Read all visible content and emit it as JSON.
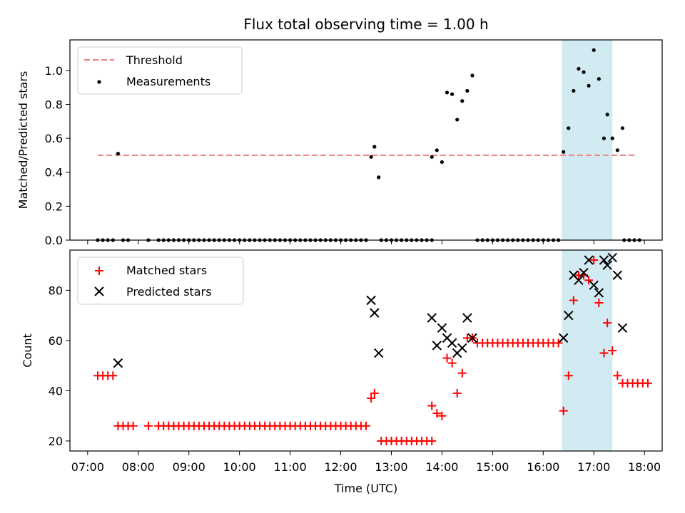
{
  "title": "Flux total observing time = 1.00 h",
  "xlabel": "Time (UTC)",
  "chart_data": [
    {
      "type": "scatter",
      "ylabel": "Matched/Predicted stars",
      "xlim": [
        "07:00",
        "18:00"
      ],
      "ylim": [
        0,
        1.18
      ],
      "yticks": [
        "0.0",
        "0.2",
        "0.4",
        "0.6",
        "0.8",
        "1.0"
      ],
      "threshold": {
        "name": "Threshold",
        "value": 0.5,
        "x_range": [
          "07:12",
          "17:50"
        ],
        "color": "#f08080"
      },
      "highlight_span": [
        "16:22",
        "17:22"
      ],
      "legend_location": "upper left",
      "series": [
        {
          "name": "Measurements",
          "color": "#000000",
          "points": [
            [
              "07:12",
              0.0
            ],
            [
              "07:18",
              0.0
            ],
            [
              "07:24",
              0.0
            ],
            [
              "07:30",
              0.0
            ],
            [
              "07:36",
              0.51
            ],
            [
              "07:42",
              0.0
            ],
            [
              "07:48",
              0.0
            ],
            [
              "08:12",
              0.0
            ],
            [
              "08:24",
              0.0
            ],
            [
              "08:30",
              0.0
            ],
            [
              "08:36",
              0.0
            ],
            [
              "08:42",
              0.0
            ],
            [
              "08:48",
              0.0
            ],
            [
              "08:54",
              0.0
            ],
            [
              "09:00",
              0.0
            ],
            [
              "09:06",
              0.0
            ],
            [
              "09:12",
              0.0
            ],
            [
              "09:18",
              0.0
            ],
            [
              "09:24",
              0.0
            ],
            [
              "09:30",
              0.0
            ],
            [
              "09:36",
              0.0
            ],
            [
              "09:42",
              0.0
            ],
            [
              "09:48",
              0.0
            ],
            [
              "09:54",
              0.0
            ],
            [
              "10:00",
              0.0
            ],
            [
              "10:06",
              0.0
            ],
            [
              "10:12",
              0.0
            ],
            [
              "10:18",
              0.0
            ],
            [
              "10:24",
              0.0
            ],
            [
              "10:30",
              0.0
            ],
            [
              "10:36",
              0.0
            ],
            [
              "10:42",
              0.0
            ],
            [
              "10:48",
              0.0
            ],
            [
              "10:54",
              0.0
            ],
            [
              "11:00",
              0.0
            ],
            [
              "11:06",
              0.0
            ],
            [
              "11:12",
              0.0
            ],
            [
              "11:18",
              0.0
            ],
            [
              "11:24",
              0.0
            ],
            [
              "11:30",
              0.0
            ],
            [
              "11:36",
              0.0
            ],
            [
              "11:42",
              0.0
            ],
            [
              "11:48",
              0.0
            ],
            [
              "11:54",
              0.0
            ],
            [
              "12:00",
              0.0
            ],
            [
              "12:06",
              0.0
            ],
            [
              "12:12",
              0.0
            ],
            [
              "12:18",
              0.0
            ],
            [
              "12:24",
              0.0
            ],
            [
              "12:30",
              0.0
            ],
            [
              "12:36",
              0.49
            ],
            [
              "12:40",
              0.55
            ],
            [
              "12:45",
              0.37
            ],
            [
              "12:48",
              0.0
            ],
            [
              "12:54",
              0.0
            ],
            [
              "13:00",
              0.0
            ],
            [
              "13:06",
              0.0
            ],
            [
              "13:12",
              0.0
            ],
            [
              "13:18",
              0.0
            ],
            [
              "13:24",
              0.0
            ],
            [
              "13:30",
              0.0
            ],
            [
              "13:36",
              0.0
            ],
            [
              "13:42",
              0.0
            ],
            [
              "13:48",
              0.0
            ],
            [
              "13:48",
              0.49
            ],
            [
              "13:54",
              0.53
            ],
            [
              "14:00",
              0.46
            ],
            [
              "14:06",
              0.87
            ],
            [
              "14:12",
              0.86
            ],
            [
              "14:18",
              0.71
            ],
            [
              "14:24",
              0.82
            ],
            [
              "14:30",
              0.88
            ],
            [
              "14:36",
              0.97
            ],
            [
              "14:42",
              0.0
            ],
            [
              "14:48",
              0.0
            ],
            [
              "14:54",
              0.0
            ],
            [
              "15:00",
              0.0
            ],
            [
              "15:06",
              0.0
            ],
            [
              "15:12",
              0.0
            ],
            [
              "15:18",
              0.0
            ],
            [
              "15:24",
              0.0
            ],
            [
              "15:30",
              0.0
            ],
            [
              "15:36",
              0.0
            ],
            [
              "15:42",
              0.0
            ],
            [
              "15:48",
              0.0
            ],
            [
              "15:54",
              0.0
            ],
            [
              "16:00",
              0.0
            ],
            [
              "16:06",
              0.0
            ],
            [
              "16:12",
              0.0
            ],
            [
              "16:18",
              0.0
            ],
            [
              "16:24",
              0.52
            ],
            [
              "16:30",
              0.66
            ],
            [
              "16:36",
              0.88
            ],
            [
              "16:42",
              1.01
            ],
            [
              "16:48",
              0.99
            ],
            [
              "16:54",
              0.91
            ],
            [
              "17:00",
              1.12
            ],
            [
              "17:06",
              0.95
            ],
            [
              "17:12",
              0.6
            ],
            [
              "17:16",
              0.74
            ],
            [
              "17:22",
              0.6
            ],
            [
              "17:28",
              0.53
            ],
            [
              "17:34",
              0.66
            ],
            [
              "17:36",
              0.0
            ],
            [
              "17:42",
              0.0
            ],
            [
              "17:48",
              0.0
            ],
            [
              "17:54",
              0.0
            ]
          ]
        }
      ]
    },
    {
      "type": "scatter",
      "ylabel": "Count",
      "xlim": [
        "07:00",
        "18:00"
      ],
      "ylim": [
        16,
        96
      ],
      "yticks": [
        "20",
        "40",
        "60",
        "80"
      ],
      "xticks": [
        "07:00",
        "08:00",
        "09:00",
        "10:00",
        "11:00",
        "12:00",
        "13:00",
        "14:00",
        "15:00",
        "16:00",
        "17:00",
        "18:00"
      ],
      "highlight_span": [
        "16:22",
        "17:22"
      ],
      "legend_location": "upper left",
      "series": [
        {
          "name": "Matched stars",
          "marker": "plus",
          "color": "#ff0000",
          "points": [
            [
              "07:12",
              46
            ],
            [
              "07:18",
              46
            ],
            [
              "07:24",
              46
            ],
            [
              "07:30",
              46
            ],
            [
              "07:36",
              26
            ],
            [
              "07:42",
              26
            ],
            [
              "07:48",
              26
            ],
            [
              "07:54",
              26
            ],
            [
              "08:12",
              26
            ],
            [
              "08:24",
              26
            ],
            [
              "08:30",
              26
            ],
            [
              "08:36",
              26
            ],
            [
              "08:42",
              26
            ],
            [
              "08:48",
              26
            ],
            [
              "08:54",
              26
            ],
            [
              "09:00",
              26
            ],
            [
              "09:06",
              26
            ],
            [
              "09:12",
              26
            ],
            [
              "09:18",
              26
            ],
            [
              "09:24",
              26
            ],
            [
              "09:30",
              26
            ],
            [
              "09:36",
              26
            ],
            [
              "09:42",
              26
            ],
            [
              "09:48",
              26
            ],
            [
              "09:54",
              26
            ],
            [
              "10:00",
              26
            ],
            [
              "10:06",
              26
            ],
            [
              "10:12",
              26
            ],
            [
              "10:18",
              26
            ],
            [
              "10:24",
              26
            ],
            [
              "10:30",
              26
            ],
            [
              "10:36",
              26
            ],
            [
              "10:42",
              26
            ],
            [
              "10:48",
              26
            ],
            [
              "10:54",
              26
            ],
            [
              "11:00",
              26
            ],
            [
              "11:06",
              26
            ],
            [
              "11:12",
              26
            ],
            [
              "11:18",
              26
            ],
            [
              "11:24",
              26
            ],
            [
              "11:30",
              26
            ],
            [
              "11:36",
              26
            ],
            [
              "11:42",
              26
            ],
            [
              "11:48",
              26
            ],
            [
              "11:54",
              26
            ],
            [
              "12:00",
              26
            ],
            [
              "12:06",
              26
            ],
            [
              "12:12",
              26
            ],
            [
              "12:18",
              26
            ],
            [
              "12:24",
              26
            ],
            [
              "12:30",
              26
            ],
            [
              "12:36",
              37
            ],
            [
              "12:40",
              39
            ],
            [
              "12:48",
              20
            ],
            [
              "12:54",
              20
            ],
            [
              "13:00",
              20
            ],
            [
              "13:06",
              20
            ],
            [
              "13:12",
              20
            ],
            [
              "13:18",
              20
            ],
            [
              "13:24",
              20
            ],
            [
              "13:30",
              20
            ],
            [
              "13:36",
              20
            ],
            [
              "13:42",
              20
            ],
            [
              "13:48",
              20
            ],
            [
              "13:48",
              34
            ],
            [
              "13:54",
              31
            ],
            [
              "14:00",
              30
            ],
            [
              "14:06",
              53
            ],
            [
              "14:12",
              51
            ],
            [
              "14:18",
              39
            ],
            [
              "14:24",
              47
            ],
            [
              "14:30",
              61
            ],
            [
              "14:36",
              61
            ],
            [
              "14:42",
              59
            ],
            [
              "14:48",
              59
            ],
            [
              "14:54",
              59
            ],
            [
              "15:00",
              59
            ],
            [
              "15:06",
              59
            ],
            [
              "15:12",
              59
            ],
            [
              "15:18",
              59
            ],
            [
              "15:24",
              59
            ],
            [
              "15:30",
              59
            ],
            [
              "15:36",
              59
            ],
            [
              "15:42",
              59
            ],
            [
              "15:48",
              59
            ],
            [
              "15:54",
              59
            ],
            [
              "16:00",
              59
            ],
            [
              "16:06",
              59
            ],
            [
              "16:12",
              59
            ],
            [
              "16:18",
              59
            ],
            [
              "16:24",
              32
            ],
            [
              "16:30",
              46
            ],
            [
              "16:36",
              76
            ],
            [
              "16:42",
              86
            ],
            [
              "16:48",
              86
            ],
            [
              "16:54",
              84
            ],
            [
              "17:00",
              92
            ],
            [
              "17:06",
              75
            ],
            [
              "17:12",
              55
            ],
            [
              "17:16",
              67
            ],
            [
              "17:22",
              56
            ],
            [
              "17:28",
              46
            ],
            [
              "17:34",
              43
            ],
            [
              "17:40",
              43
            ],
            [
              "17:46",
              43
            ],
            [
              "17:52",
              43
            ],
            [
              "17:58",
              43
            ],
            [
              "18:04",
              43
            ]
          ]
        },
        {
          "name": "Predicted stars",
          "marker": "x",
          "color": "#000000",
          "points": [
            [
              "07:36",
              51
            ],
            [
              "12:36",
              76
            ],
            [
              "12:40",
              71
            ],
            [
              "12:45",
              55
            ],
            [
              "13:48",
              69
            ],
            [
              "13:54",
              58
            ],
            [
              "14:00",
              65
            ],
            [
              "14:06",
              61
            ],
            [
              "14:12",
              59
            ],
            [
              "14:18",
              55
            ],
            [
              "14:24",
              57
            ],
            [
              "14:30",
              69
            ],
            [
              "14:36",
              61
            ],
            [
              "16:24",
              61
            ],
            [
              "16:30",
              70
            ],
            [
              "16:36",
              86
            ],
            [
              "16:42",
              84
            ],
            [
              "16:48",
              87
            ],
            [
              "16:54",
              92
            ],
            [
              "17:00",
              82
            ],
            [
              "17:06",
              79
            ],
            [
              "17:12",
              92
            ],
            [
              "17:16",
              90
            ],
            [
              "17:22",
              93
            ],
            [
              "17:28",
              86
            ],
            [
              "17:34",
              65
            ]
          ]
        }
      ]
    }
  ]
}
